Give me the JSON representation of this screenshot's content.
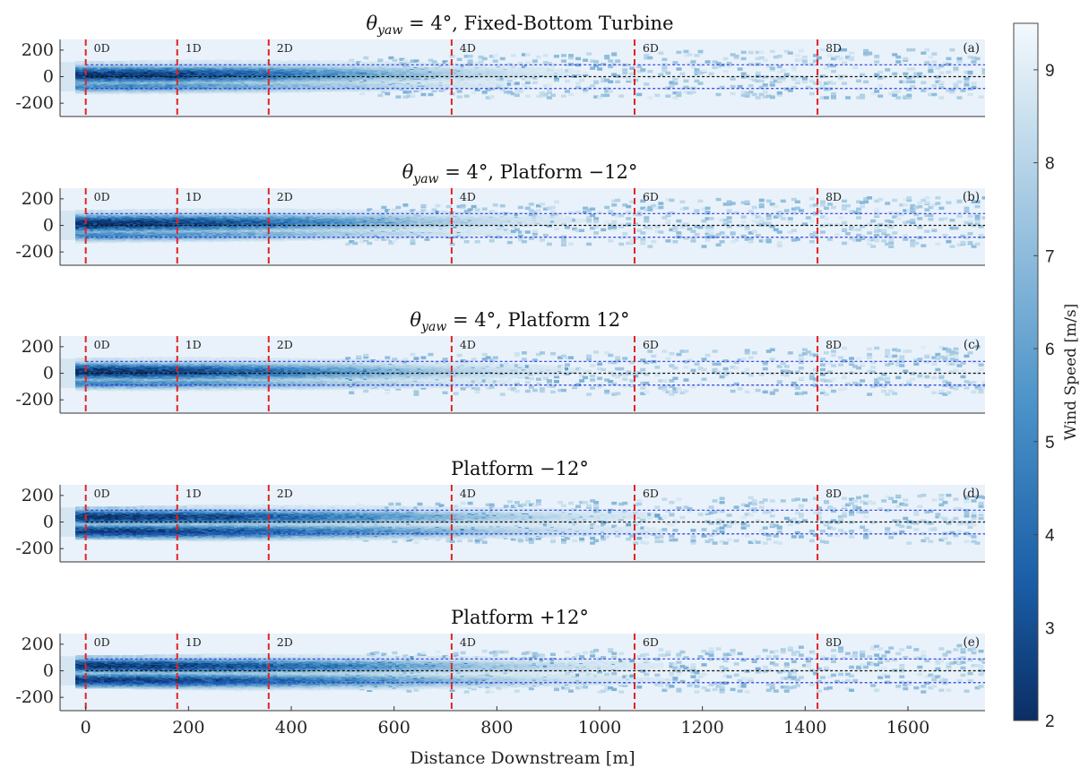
{
  "chart_data": {
    "type": "heatmap",
    "shared_x": {
      "label": "Distance Downstream [m]",
      "range": [
        -50,
        1750
      ],
      "ticks": [
        0,
        200,
        400,
        600,
        800,
        1000,
        1200,
        1400,
        1600
      ],
      "tick_labels": [
        "0",
        "200",
        "400",
        "600",
        "800",
        "1000",
        "1200",
        "1400",
        "1600"
      ]
    },
    "y_axis": {
      "range": [
        -300,
        280
      ],
      "ticks": [
        200,
        0,
        -200
      ],
      "tick_labels": [
        "200",
        "0",
        "-200"
      ]
    },
    "colorbar": {
      "label": "Wind Speed [m/s]",
      "range": [
        2,
        9.5
      ],
      "ticks": [
        2,
        3,
        4,
        5,
        6,
        7,
        8,
        9
      ],
      "tick_labels": [
        "2",
        "3",
        "4",
        "5",
        "6",
        "7",
        "8",
        "9"
      ],
      "colormap": [
        "#0b2e64",
        "#1a5ea8",
        "#4a92c8",
        "#a7cbe3",
        "#f4f9fd"
      ]
    },
    "rotor_diameter_m": 178,
    "downstream_markers": [
      {
        "x": 0,
        "label": "0D"
      },
      {
        "x": 178,
        "label": "1D"
      },
      {
        "x": 356,
        "label": "2D"
      },
      {
        "x": 712,
        "label": "4D"
      },
      {
        "x": 1068,
        "label": "6D"
      },
      {
        "x": 1424,
        "label": "8D"
      }
    ],
    "rotor_lines": {
      "top": 89,
      "hub": 0,
      "bottom": -89
    },
    "marker_color": "#e32222",
    "rotor_line_color": "#2c3ee0",
    "hub_line_color": "#111111",
    "panels": [
      {
        "id": "a",
        "title": "θ<sub>yaw</sub> = 4°, Fixed-Bottom Turbine",
        "tag": "(a)",
        "deflection": 5,
        "mode": "single"
      },
      {
        "id": "b",
        "title": "θ<sub>yaw</sub> = 4°, Platform −12°",
        "tag": "(b)",
        "deflection": 10,
        "mode": "single"
      },
      {
        "id": "c",
        "title": "θ<sub>yaw</sub> = 4°, Platform 12°",
        "tag": "(c)",
        "deflection": -2,
        "mode": "single"
      },
      {
        "id": "d",
        "title": "Platform −12°",
        "tag": "(d)",
        "deflection": 0,
        "mode": "double"
      },
      {
        "id": "e",
        "title": "Platform +12°",
        "tag": "(e)",
        "deflection": -3,
        "mode": "double"
      }
    ]
  }
}
